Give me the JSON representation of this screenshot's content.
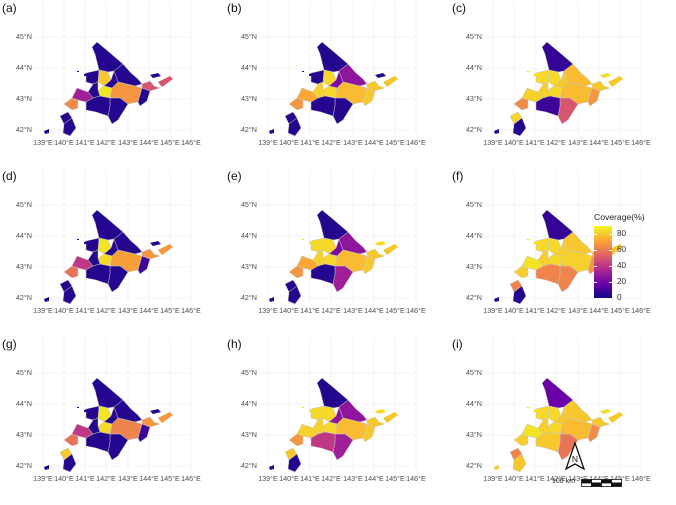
{
  "panels": [
    {
      "tag": "(a)",
      "values": [
        5,
        5,
        88,
        55,
        5,
        5,
        95,
        75,
        5,
        5,
        35,
        72,
        5,
        5,
        5,
        5
      ]
    },
    {
      "tag": "(b)",
      "values": [
        5,
        30,
        92,
        88,
        5,
        25,
        92,
        85,
        90,
        88,
        80,
        75,
        5,
        5,
        5,
        5
      ]
    },
    {
      "tag": "(c)",
      "values": [
        8,
        85,
        92,
        88,
        92,
        88,
        92,
        85,
        90,
        75,
        90,
        72,
        55,
        10,
        92,
        5
      ]
    },
    {
      "tag": "(d)",
      "values": [
        5,
        5,
        95,
        75,
        5,
        5,
        92,
        78,
        5,
        10,
        45,
        65,
        5,
        5,
        5,
        5
      ]
    },
    {
      "tag": "(e)",
      "values": [
        5,
        30,
        92,
        88,
        92,
        25,
        92,
        85,
        90,
        88,
        80,
        75,
        35,
        5,
        5,
        5
      ]
    },
    {
      "tag": "(f)",
      "values": [
        8,
        88,
        92,
        88,
        92,
        90,
        92,
        90,
        90,
        75,
        95,
        90,
        70,
        70,
        70,
        5
      ]
    },
    {
      "tag": "(g)",
      "values": [
        5,
        5,
        95,
        75,
        5,
        5,
        92,
        70,
        5,
        10,
        45,
        65,
        5,
        5,
        88,
        5
      ]
    },
    {
      "tag": "(h)",
      "values": [
        5,
        30,
        92,
        88,
        92,
        30,
        92,
        85,
        90,
        88,
        90,
        75,
        35,
        45,
        88,
        5
      ]
    },
    {
      "tag": "(i)",
      "values": [
        20,
        88,
        92,
        88,
        92,
        88,
        92,
        85,
        90,
        72,
        95,
        90,
        65,
        88,
        70,
        88
      ]
    }
  ],
  "lat_labels": [
    "45°N",
    "44°N",
    "43°N",
    "42°N"
  ],
  "lon_labels": [
    "139°E",
    "140°E",
    "141°E",
    "142°E",
    "143°E",
    "144°E",
    "145°E",
    "146°E"
  ],
  "legend": {
    "title": "Coverage(%)",
    "ticks": [
      "80",
      "60",
      "40",
      "20",
      "0"
    ],
    "colors": [
      "#0d0887",
      "#6a00a8",
      "#b12a90",
      "#e16462",
      "#fca636",
      "#f0f921"
    ]
  },
  "compass_label": "N",
  "scale_label": "100 km"
}
